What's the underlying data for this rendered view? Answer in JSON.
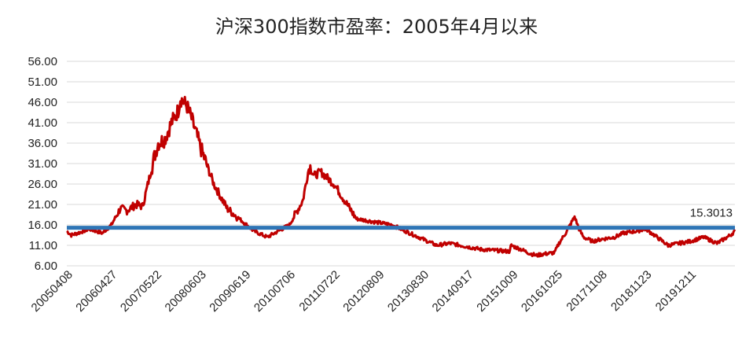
{
  "chart_data": {
    "type": "line",
    "title": "沪深300指数市盈率：2005年4月以来",
    "xlabel": "",
    "ylabel": "",
    "ylim": [
      6,
      56
    ],
    "yticks": [
      "56.00",
      "51.00",
      "46.00",
      "41.00",
      "36.00",
      "31.00",
      "26.00",
      "21.00",
      "16.00",
      "11.00",
      "6.00"
    ],
    "xticks": [
      "20050408",
      "20060427",
      "20070522",
      "20080603",
      "20090619",
      "20100706",
      "20110722",
      "20120809",
      "20130830",
      "20140917",
      "20151009",
      "20161025",
      "20171108",
      "20181123",
      "20191211"
    ],
    "grid": true,
    "legend": "none",
    "colors": {
      "pe_line": "#c00000",
      "mean_line": "#2e75b6",
      "grid": "#d9d9d9"
    },
    "series": [
      {
        "key": "pe",
        "x": [
          0,
          0.1,
          0.3,
          0.5,
          0.8,
          1.0,
          1.2,
          1.35,
          1.55,
          1.7,
          1.8,
          1.95,
          2.05,
          2.2,
          2.35,
          2.5,
          2.55,
          2.7,
          2.8,
          3.0,
          3.3,
          3.6,
          4.2,
          4.5,
          5.0,
          5.3,
          5.4,
          5.45,
          5.55,
          5.7,
          5.8,
          6.0,
          6.5,
          7.3,
          8.3,
          8.6,
          9.3,
          9.95,
          9.97,
          10.2,
          10.4,
          10.55,
          10.65,
          10.8,
          10.95,
          11.05,
          11.2,
          11.4,
          11.5,
          11.6,
          11.8,
          12.0,
          12.3,
          12.5,
          12.8,
          13.0,
          13.5,
          14.0,
          14.3,
          14.6,
          14.9,
          15.0
        ],
        "values": [
          14.5,
          13.5,
          14.2,
          15.0,
          14.0,
          16.0,
          20.0,
          19.5,
          21.0,
          20.5,
          25.0,
          32.0,
          36.0,
          37.0,
          41.0,
          44.0,
          47.0,
          45.0,
          42.0,
          35.0,
          26.0,
          20.0,
          14.5,
          13.0,
          16.0,
          22.0,
          28.0,
          30.5,
          28.0,
          29.0,
          28.0,
          26.0,
          17.5,
          16.0,
          11.0,
          11.5,
          10.0,
          9.5,
          11.0,
          10.0,
          9.0,
          8.5,
          8.8,
          9.0,
          9.2,
          11.5,
          14.0,
          18.0,
          15.0,
          13.0,
          12.0,
          12.5,
          13.0,
          14.0,
          14.5,
          15.0,
          11.0,
          12.0,
          13.0,
          11.5,
          13.5,
          14.5
        ]
      },
      {
        "key": "mean",
        "label": "15.3013",
        "x": [
          0,
          15.0
        ],
        "values": [
          15.3013,
          15.3013
        ]
      }
    ]
  }
}
